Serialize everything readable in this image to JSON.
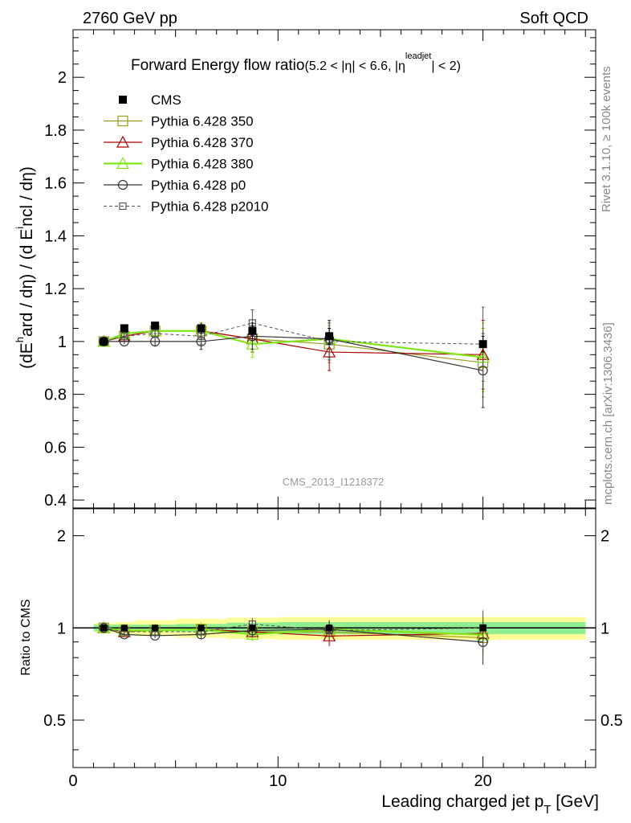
{
  "header": {
    "left": "2760 GeV pp",
    "right": "Soft QCD"
  },
  "side": {
    "rivet": "Rivet 3.1.10, ≥ 100k events",
    "mcplots": "mcplots.cern.ch [arXiv:1306.3436]"
  },
  "watermark": "CMS_2013_I1218372",
  "title": {
    "main": "Forward Energy flow ratio",
    "sub_a": "(5.2 < |η| < 6.6, |η",
    "sup": "leadjet",
    "sub_b": "| < 2)"
  },
  "ylabel_main": {
    "p1": "(dE",
    "sup1": "h",
    "p2": "ard / dη) / (d E",
    "sup2": "i",
    "p3": "ncl / dη)"
  },
  "ylabel_ratio": "Ratio to CMS",
  "xlabel": {
    "text": "Leading charged jet p",
    "sub": "T",
    "unit": " [GeV]"
  },
  "colors": {
    "CMS": "#000000",
    "350": "#99991a",
    "370": "#aa0000",
    "380": "#80e619",
    "p0": "#333333",
    "p2010": "#555555",
    "band_green": "#90ee90",
    "band_yellow": "#ffff99"
  },
  "chart_data": {
    "type": "scatter",
    "x": [
      1.5,
      2.5,
      4.0,
      6.25,
      8.75,
      12.5,
      20.0
    ],
    "xlim": [
      0,
      25.5
    ],
    "ylim": [
      0.37,
      2.18
    ],
    "x_ticks": [
      "0",
      "10",
      "20"
    ],
    "y_ticks": [
      "0.4",
      "0.6",
      "0.8",
      "1",
      "1.2",
      "1.4",
      "1.6",
      "1.8",
      "2"
    ],
    "ratio_ylim": [
      0.35,
      2.45
    ],
    "ratio_ticks": [
      "0.5",
      "1",
      "2"
    ],
    "legend_position": "top-left",
    "series": [
      {
        "key": "CMS",
        "name": "CMS",
        "values": [
          1.0,
          1.05,
          1.06,
          1.05,
          1.04,
          1.02,
          0.99
        ],
        "errors": [
          0.01,
          0.01,
          0.01,
          0.02,
          0.03,
          0.03,
          0.03
        ]
      },
      {
        "key": "350",
        "name": "Pythia 6.428 350",
        "values": [
          1.0,
          1.02,
          1.04,
          1.04,
          1.01,
          0.99,
          0.92
        ],
        "errors": [
          0.01,
          0.01,
          0.02,
          0.03,
          0.05,
          0.07,
          0.13
        ]
      },
      {
        "key": "370",
        "name": "Pythia 6.428 370",
        "values": [
          1.0,
          1.02,
          1.04,
          1.04,
          1.01,
          0.96,
          0.95
        ],
        "errors": [
          0.01,
          0.01,
          0.02,
          0.03,
          0.05,
          0.07,
          0.13
        ]
      },
      {
        "key": "380",
        "name": "Pythia 6.428 380",
        "values": [
          1.0,
          1.03,
          1.04,
          1.04,
          0.99,
          1.01,
          0.94
        ],
        "errors": [
          0.01,
          0.01,
          0.02,
          0.03,
          0.05,
          0.07,
          0.13
        ]
      },
      {
        "key": "p0",
        "name": "Pythia 6.428 p0",
        "values": [
          1.0,
          1.0,
          1.0,
          1.0,
          1.02,
          1.01,
          0.89
        ],
        "errors": [
          0.01,
          0.01,
          0.02,
          0.03,
          0.05,
          0.07,
          0.14
        ]
      },
      {
        "key": "p2010",
        "name": "Pythia 6.428 p2010",
        "values": [
          1.0,
          1.02,
          1.03,
          1.02,
          1.07,
          1.0,
          0.99
        ],
        "errors": [
          0.01,
          0.01,
          0.02,
          0.03,
          0.05,
          0.07,
          0.14
        ]
      }
    ],
    "ratio_band": {
      "x_edges": [
        1.0,
        2.0,
        3.0,
        5.0,
        7.5,
        10.0,
        15.0,
        25.0
      ],
      "green": [
        0.025,
        0.025,
        0.025,
        0.03,
        0.04,
        0.045,
        0.045
      ],
      "yellow": [
        0.035,
        0.045,
        0.06,
        0.07,
        0.08,
        0.085,
        0.085
      ]
    }
  }
}
